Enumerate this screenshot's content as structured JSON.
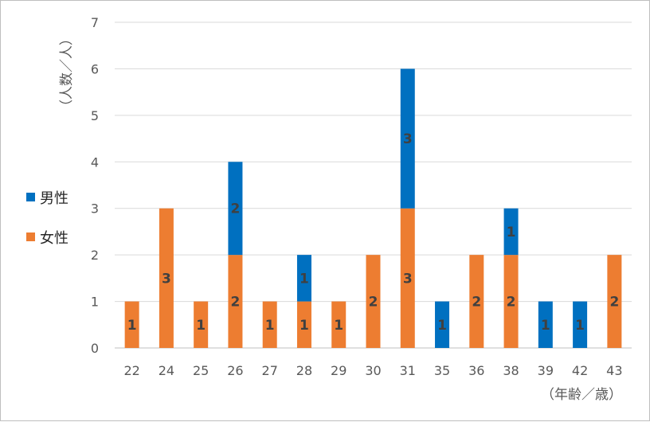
{
  "chart_data": {
    "type": "bar",
    "stacked": true,
    "categories": [
      "22",
      "24",
      "25",
      "26",
      "27",
      "28",
      "29",
      "30",
      "31",
      "35",
      "36",
      "38",
      "39",
      "42",
      "43"
    ],
    "series": [
      {
        "name": "女性",
        "color": "#ED7D31",
        "values": [
          1,
          3,
          1,
          2,
          1,
          1,
          1,
          2,
          3,
          0,
          2,
          2,
          0,
          0,
          2
        ]
      },
      {
        "name": "男性",
        "color": "#0070C0",
        "values": [
          0,
          0,
          0,
          2,
          0,
          1,
          0,
          0,
          3,
          1,
          0,
          1,
          1,
          1,
          0
        ]
      }
    ],
    "ylabel": "（人数／人）",
    "xlabel": "（年齢／歳）",
    "ylim": [
      0,
      7
    ],
    "yticks": [
      0,
      1,
      2,
      3,
      4,
      5,
      6,
      7
    ],
    "grid": true,
    "legend_position": "left",
    "legend_order": [
      "男性",
      "女性"
    ]
  }
}
